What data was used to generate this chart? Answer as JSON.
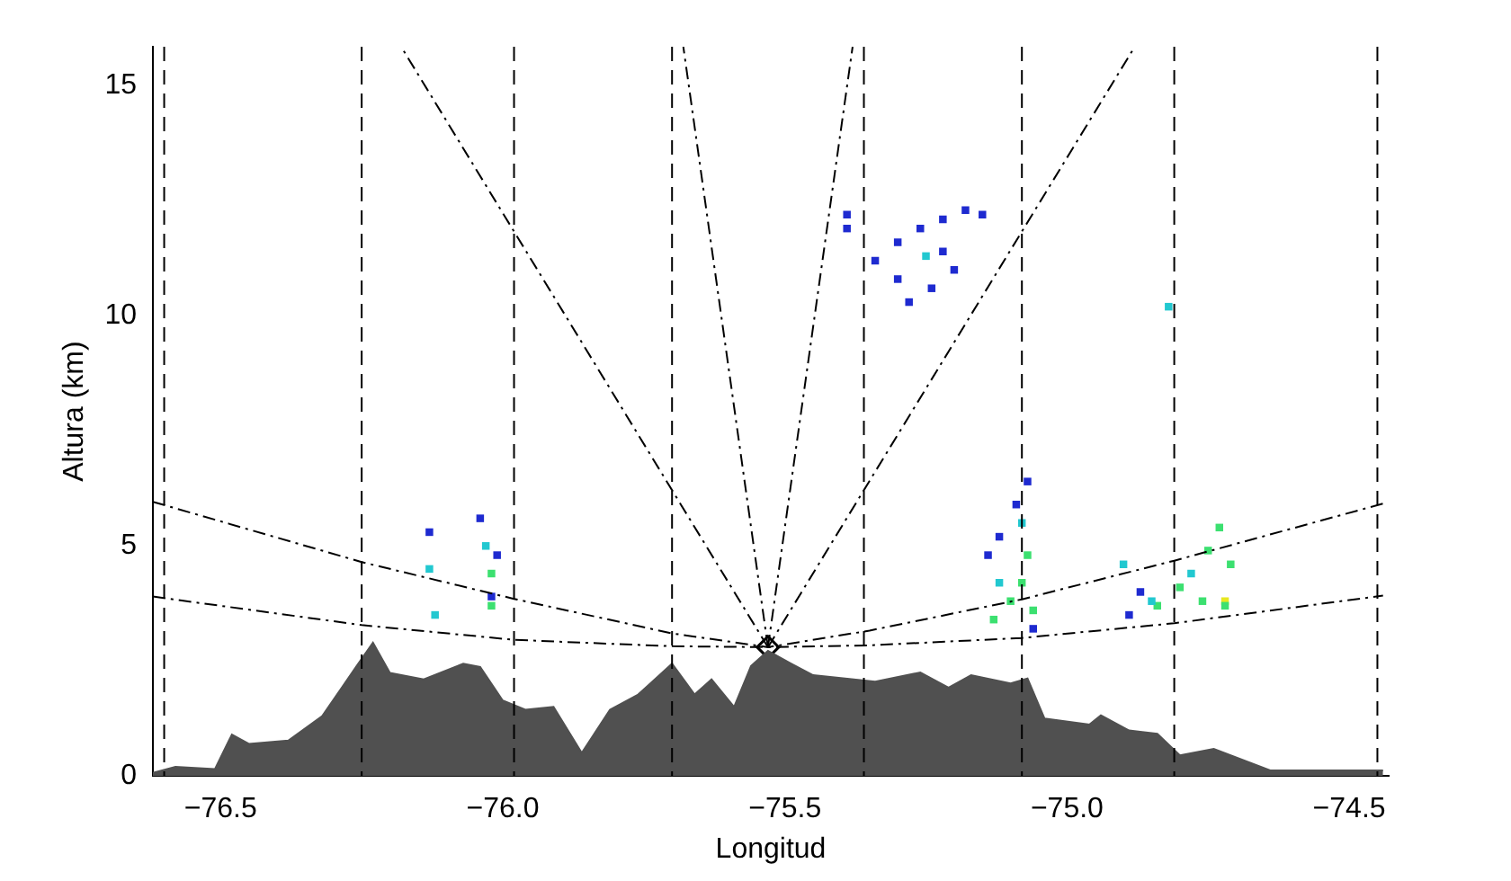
{
  "chart_data": {
    "type": "area",
    "xlabel": "Longitud",
    "ylabel": "Altura (km)",
    "xlim": [
      -76.62,
      -74.43
    ],
    "ylim": [
      0,
      15.85
    ],
    "xticks": [
      {
        "value": -76.5,
        "label": "−76.5"
      },
      {
        "value": -76.0,
        "label": "−76.0"
      },
      {
        "value": -75.5,
        "label": "−75.5"
      },
      {
        "value": -75.0,
        "label": "−75.0"
      },
      {
        "value": -74.5,
        "label": "−74.5"
      }
    ],
    "yticks": [
      0,
      5,
      10,
      15
    ],
    "grid": false,
    "legend": false,
    "series": [
      {
        "color": "#505050",
        "x": [
          -76.62,
          -76.58,
          -76.51,
          -76.48,
          -76.45,
          -76.38,
          -76.32,
          -76.26,
          -76.23,
          -76.2,
          -76.14,
          -76.07,
          -76.04,
          -76.0,
          -75.96,
          -75.91,
          -75.86,
          -75.81,
          -75.76,
          -75.7,
          -75.66,
          -75.63,
          -75.59,
          -75.56,
          -75.53,
          -75.49,
          -75.45,
          -75.34,
          -75.26,
          -75.21,
          -75.17,
          -75.1,
          -75.07,
          -75.04,
          -74.96,
          -74.94,
          -74.89,
          -74.84,
          -74.8,
          -74.74,
          -74.64,
          -74.53,
          -74.44
        ],
        "values": [
          0.07,
          0.2,
          0.15,
          0.9,
          0.7,
          0.77,
          1.3,
          2.37,
          2.9,
          2.24,
          2.1,
          2.44,
          2.37,
          1.64,
          1.44,
          1.5,
          0.5,
          1.44,
          1.77,
          2.44,
          1.77,
          2.1,
          1.5,
          2.39,
          2.72,
          2.45,
          2.19,
          2.05,
          2.25,
          1.92,
          2.19,
          2.01,
          2.12,
          1.25,
          1.12,
          1.32,
          0.99,
          0.92,
          0.45,
          0.59,
          0.12,
          0.12,
          0.12
        ]
      },
      {
        "type": "line",
        "color": "#000000",
        "line_style": "dashed",
        "x": [
          -76.62,
          -76.25,
          -75.98,
          -75.7,
          -75.53,
          -75.35,
          -75.08,
          -74.81,
          -74.44
        ],
        "values": [
          5.96,
          4.65,
          3.85,
          3.1,
          2.8,
          3.16,
          3.84,
          4.68,
          5.92
        ]
      },
      {
        "type": "line",
        "color": "#000000",
        "line_style": "dashed",
        "x": [
          -76.62,
          -76.25,
          -75.98,
          -75.7,
          -75.53,
          -75.35,
          -75.08,
          -74.81,
          -74.44
        ],
        "values": [
          3.9,
          3.28,
          2.96,
          2.82,
          2.8,
          2.84,
          3.0,
          3.32,
          3.92
        ]
      },
      {
        "type": "line",
        "color": "#000000",
        "line_style": "dashed",
        "x": [
          -75.53,
          -76.18
        ],
        "values": [
          2.8,
          15.85
        ]
      },
      {
        "type": "line",
        "color": "#000000",
        "line_style": "dashed",
        "x": [
          -75.53,
          -75.68
        ],
        "values": [
          2.8,
          15.85
        ]
      },
      {
        "type": "line",
        "color": "#000000",
        "line_style": "dashed",
        "x": [
          -75.53,
          -75.38
        ],
        "values": [
          2.8,
          15.85
        ]
      },
      {
        "type": "line",
        "color": "#000000",
        "line_style": "dashed",
        "x": [
          -75.53,
          -74.88
        ],
        "values": [
          2.8,
          15.85
        ]
      },
      {
        "type": "scatter",
        "color": "#1e2ad0",
        "marker": "square",
        "x": [
          -76.13,
          -76.04,
          -76.01,
          -76.02,
          -75.14,
          -75.12,
          -75.09,
          -75.07,
          -75.06,
          -74.89,
          -74.87,
          -75.34,
          -75.3,
          -75.26,
          -75.22,
          -75.18,
          -75.15,
          -75.3,
          -75.24,
          -75.2,
          -75.28,
          -75.22,
          -75.39,
          -75.39
        ],
        "values": [
          5.3,
          5.6,
          4.8,
          3.9,
          4.8,
          5.2,
          5.9,
          6.4,
          3.2,
          3.5,
          4.0,
          11.2,
          11.6,
          11.9,
          12.1,
          12.3,
          12.2,
          10.8,
          10.6,
          11.0,
          10.3,
          11.4,
          12.2,
          11.9
        ]
      },
      {
        "type": "scatter",
        "color": "#22c8d0",
        "marker": "square",
        "x": [
          -76.13,
          -76.12,
          -76.03,
          -75.12,
          -75.08,
          -74.9,
          -74.85,
          -74.78,
          -74.82,
          -75.25
        ],
        "values": [
          4.5,
          3.5,
          5.0,
          4.2,
          5.5,
          4.6,
          3.8,
          4.4,
          10.2,
          11.3
        ]
      },
      {
        "type": "scatter",
        "color": "#3ce070",
        "marker": "square",
        "x": [
          -76.02,
          -76.02,
          -75.13,
          -75.1,
          -75.07,
          -75.06,
          -75.08,
          -74.84,
          -74.8,
          -74.76,
          -74.73,
          -74.71,
          -74.72,
          -74.75
        ],
        "values": [
          4.4,
          3.7,
          3.4,
          3.8,
          4.8,
          3.6,
          4.2,
          3.7,
          4.1,
          3.8,
          5.4,
          4.6,
          3.7,
          4.9
        ]
      },
      {
        "type": "scatter",
        "color": "#e8e820",
        "marker": "square",
        "x": [
          -74.72
        ],
        "values": [
          3.8
        ]
      },
      {
        "type": "scatter",
        "color": "#000000",
        "marker": "diamond",
        "x": [
          -75.53
        ],
        "values": [
          2.8
        ]
      }
    ],
    "ref_lines": [
      {
        "axis": "x",
        "value": -76.6,
        "line_style": "dashed"
      },
      {
        "axis": "x",
        "value": -76.25,
        "line_style": "dashed"
      },
      {
        "axis": "x",
        "value": -75.98,
        "line_style": "dashed"
      },
      {
        "axis": "x",
        "value": -75.7,
        "line_style": "dashed"
      },
      {
        "axis": "x",
        "value": -75.36,
        "line_style": "dashed"
      },
      {
        "axis": "x",
        "value": -75.08,
        "line_style": "dashed"
      },
      {
        "axis": "x",
        "value": -74.81,
        "line_style": "dashed"
      },
      {
        "axis": "x",
        "value": -74.45,
        "line_style": "dashed"
      }
    ]
  }
}
